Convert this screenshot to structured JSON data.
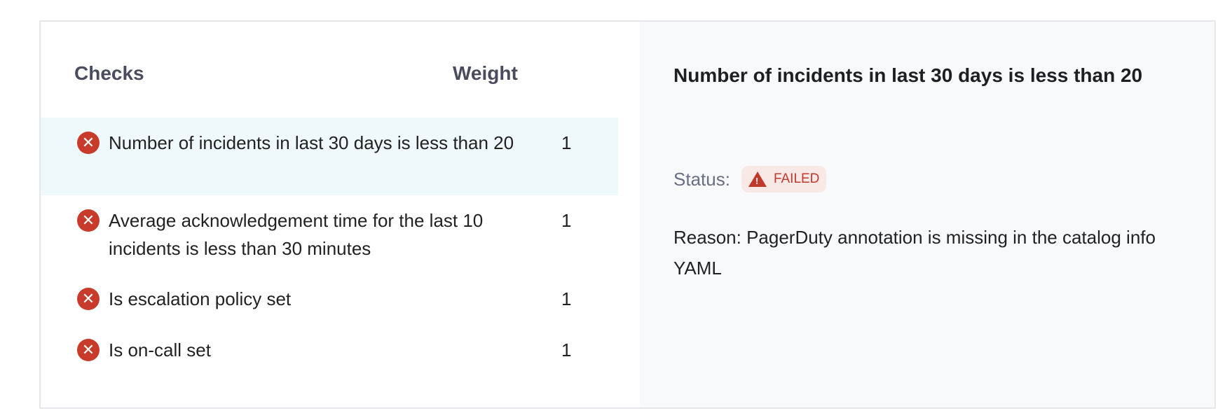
{
  "table": {
    "headers": {
      "checks": "Checks",
      "weight": "Weight"
    },
    "rows": [
      {
        "label": "Number of incidents in last 30 days is less than 20",
        "weight": "1",
        "status": "failed",
        "selected": true
      },
      {
        "label": "Average acknowledgement time for the last 10 incidents is less than 30 minutes",
        "weight": "1",
        "status": "failed"
      },
      {
        "label": "Is escalation policy set",
        "weight": "1",
        "status": "failed"
      },
      {
        "label": "Is on-call set",
        "weight": "1",
        "status": "failed"
      }
    ]
  },
  "detail": {
    "title": "Number of incidents in last 30 days is less than 20",
    "status_label": "Status:",
    "status_value": "FAILED",
    "reason": "Reason: PagerDuty annotation is missing in the catalog info YAML"
  },
  "icons": {
    "row_status": "error-circle-x-icon",
    "badge": "warning-triangle-icon"
  },
  "colors": {
    "failed": "#c83b2b",
    "selected_row": "#eff8fb",
    "badge_bg": "#f8e8e6"
  }
}
